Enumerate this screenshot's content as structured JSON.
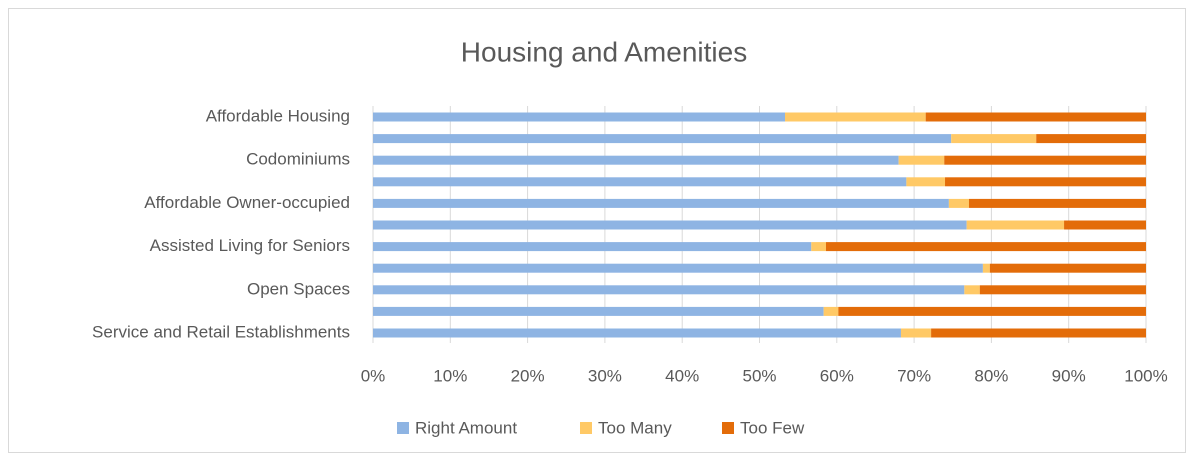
{
  "chart_data": {
    "type": "stacked_bar_horizontal",
    "title": "Housing and Amenities",
    "categories": [
      "Affordable Housing",
      null,
      "Codominiums",
      null,
      "Affordable Owner-occupied",
      null,
      "Assisted Living for Seniors",
      null,
      "Open Spaces",
      null,
      "Service and Retail Establishments"
    ],
    "series": [
      {
        "name": "Right Amount",
        "color": "#8eb4e3",
        "values": [
          53.3,
          74.8,
          68,
          69,
          74.5,
          76.8,
          56.7,
          78.9,
          76.5,
          58.3,
          68.3
        ]
      },
      {
        "name": "Too Many",
        "color": "#ffc966",
        "values": [
          18.2,
          11,
          5.9,
          5,
          2.6,
          12.6,
          1.9,
          0.9,
          2,
          1.9,
          3.9
        ]
      },
      {
        "name": "Too Few",
        "color": "#e36c09",
        "values": [
          28.5,
          14.2,
          26.1,
          26,
          22.9,
          10.6,
          41.4,
          20.2,
          21.5,
          39.8,
          27.8
        ]
      }
    ],
    "xlim": [
      0,
      100
    ],
    "xticks": [
      {
        "value": 0,
        "label": "0%"
      },
      {
        "value": 10,
        "label": "10%"
      },
      {
        "value": 20,
        "label": "20%"
      },
      {
        "value": 30,
        "label": "30%"
      },
      {
        "value": 40,
        "label": "40%"
      },
      {
        "value": 50,
        "label": "50%"
      },
      {
        "value": 60,
        "label": "60%"
      },
      {
        "value": 70,
        "label": "70%"
      },
      {
        "value": 80,
        "label": "80%"
      },
      {
        "value": 90,
        "label": "90%"
      },
      {
        "value": 100,
        "label": "100%"
      }
    ],
    "grid": true,
    "legend": "bottom"
  }
}
